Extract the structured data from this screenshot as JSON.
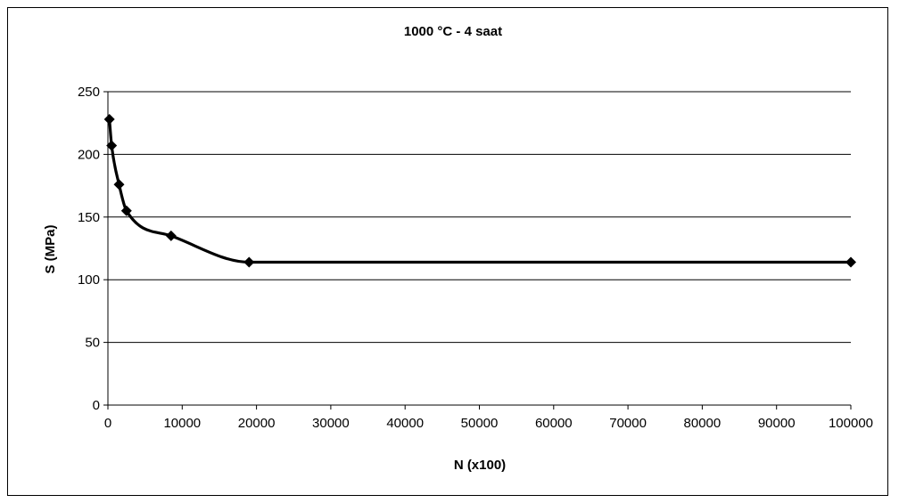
{
  "chart_data": {
    "type": "line",
    "title": "1000 °C - 4 saat",
    "xlabel": "N (x100)",
    "ylabel": "S (MPa)",
    "xlim": [
      0,
      100000
    ],
    "ylim": [
      0,
      250
    ],
    "xticks": [
      0,
      10000,
      20000,
      30000,
      40000,
      50000,
      60000,
      70000,
      80000,
      90000,
      100000
    ],
    "yticks": [
      0,
      50,
      100,
      150,
      200,
      250
    ],
    "grid": "horizontal",
    "legend": "none",
    "line_color": "#000000",
    "series": [
      {
        "x": [
          200,
          500,
          1500,
          2500,
          8500,
          19000,
          100000
        ],
        "y": [
          228,
          207,
          176,
          155,
          135,
          114,
          114
        ]
      }
    ]
  }
}
